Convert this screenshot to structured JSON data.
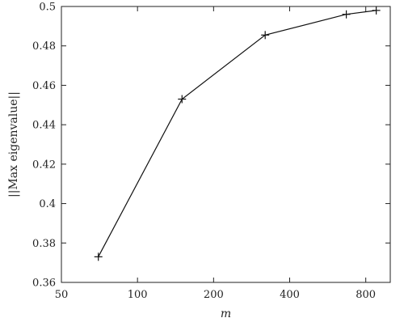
{
  "chart_data": {
    "type": "line",
    "title": "",
    "xlabel": "m",
    "ylabel": "||Max eigenvalue||",
    "x_scale": "log2",
    "xlim": [
      50,
      1000
    ],
    "ylim": [
      0.36,
      0.5
    ],
    "x_ticks": [
      50,
      100,
      200,
      400,
      800
    ],
    "x_tick_labels": [
      "50",
      "100",
      "200",
      "400",
      "800"
    ],
    "y_ticks": [
      0.36,
      0.38,
      0.4,
      0.42,
      0.44,
      0.46,
      0.48,
      0.5
    ],
    "y_tick_labels": [
      "0.36",
      "0.38",
      "0.4",
      "0.42",
      "0.44",
      "0.46",
      "0.48",
      "0.5"
    ],
    "grid": false,
    "marker": "plus",
    "series": [
      {
        "x": [
          70,
          150,
          320,
          670,
          880
        ],
        "values": [
          0.373,
          0.453,
          0.4855,
          0.496,
          0.498
        ]
      }
    ],
    "colors": {
      "line": "#111111",
      "axis": "#222222"
    }
  }
}
